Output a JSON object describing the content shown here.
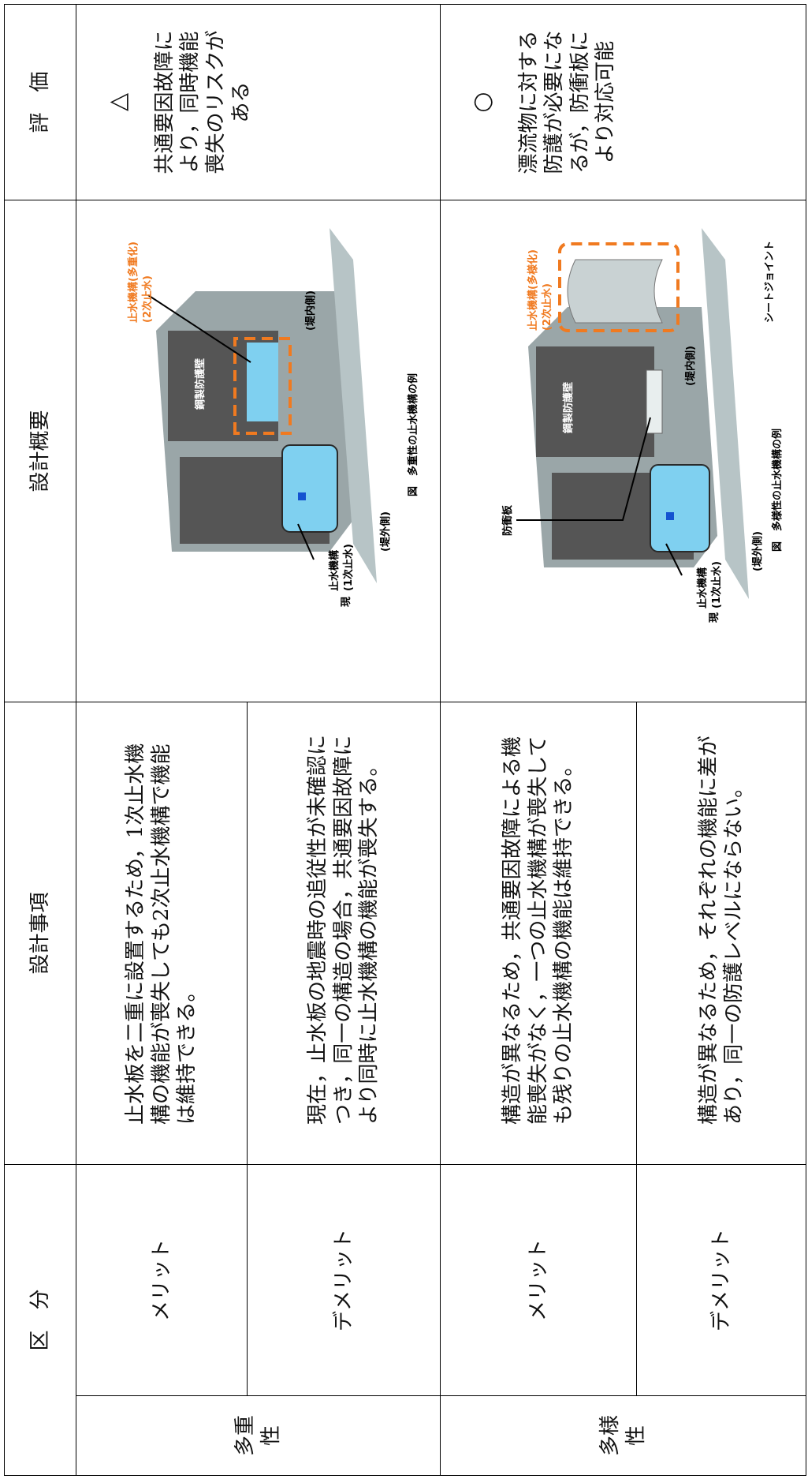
{
  "header": {
    "category": "区　分",
    "design_items": "設計事項",
    "design_overview": "設計概要",
    "evaluation": "評　価"
  },
  "rows": [
    {
      "group": "多重性",
      "merit": {
        "label": "メリット",
        "text": "止水板を二重に設置するため，1次止水機構の機能が喪失しても2次止水機構で機能は維持できる。"
      },
      "demerit": {
        "label": "デメリット",
        "text": "現在，止水板の地震時の追従性が未確認につき，同一の構造の場合，共通要因故障により同時に止水機構の機能が喪失する。"
      },
      "figure": {
        "labels": [
          "現",
          "止水機構",
          "(1次止水)",
          "(堤外側)",
          "止水機構(多重化)",
          "(2次止水)",
          "鋼製防護壁",
          "(堤内側)"
        ],
        "caption": "図　多重性の止水機構の例"
      },
      "evaluation": {
        "symbol": "△",
        "text": "共通要因故障により，同時機能喪失のリスクがある"
      }
    },
    {
      "group": "多様性",
      "merit": {
        "label": "メリット",
        "text": "構造が異なるため，共通要因故障による機能喪失がなく，一つの止水機構が喪失しても残りの止水機構の機能は維持できる。"
      },
      "demerit": {
        "label": "デメリット",
        "text": "構造が異なるため，それぞれの機能に差があり，同一の防護レベルにならない。"
      },
      "figure": {
        "labels": [
          "現",
          "止水機構",
          "(1次止水)",
          "(堤外側)",
          "防衝板",
          "鋼製防護壁",
          "止水機構(多様化)",
          "(2次止水)",
          "(堤内側)",
          "シートジョイント"
        ],
        "caption": "図　多様性の止水機構の例"
      },
      "evaluation": {
        "symbol": "○",
        "text": "漂流物に対する防護が必要になるが，防衝板により対応可能"
      }
    }
  ]
}
